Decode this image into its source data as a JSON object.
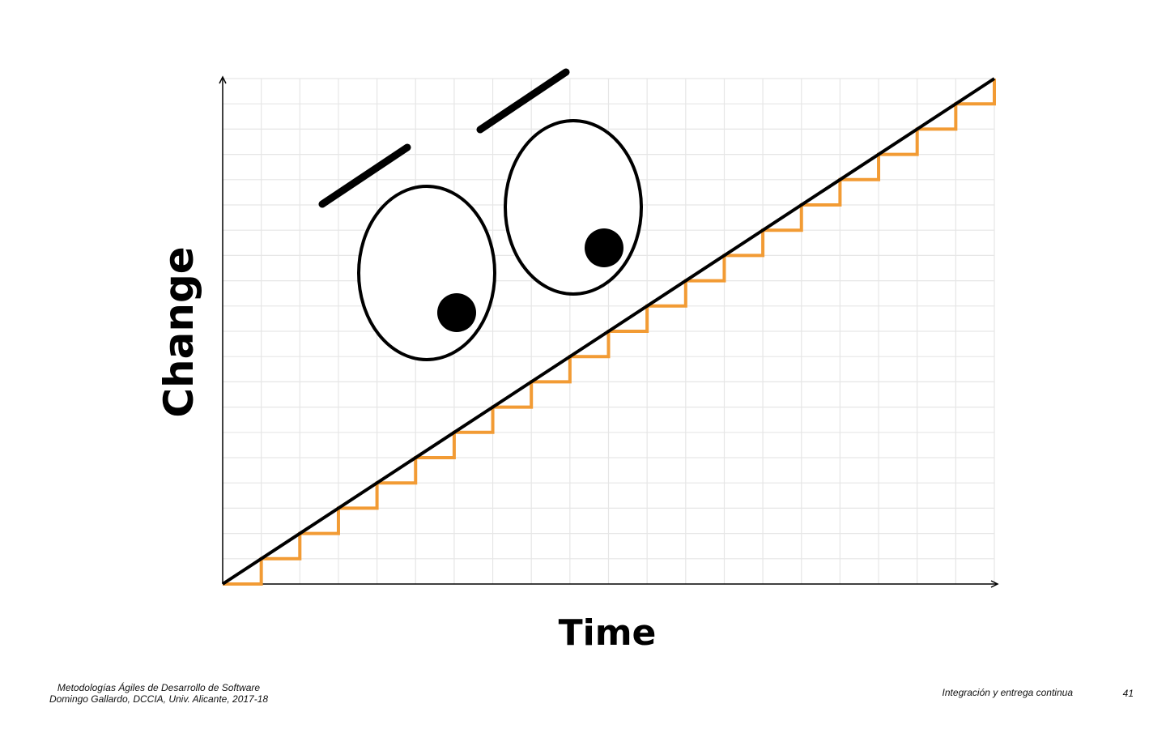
{
  "chart_data": {
    "type": "line",
    "xlabel": "Time",
    "ylabel": "Change",
    "xlim": [
      0,
      20
    ],
    "ylim": [
      0,
      20
    ],
    "grid": true,
    "series": [
      {
        "color": "#000000",
        "x": [
          0,
          20
        ],
        "y": [
          0,
          20
        ]
      },
      {
        "color": "#f29b34",
        "step": "post",
        "x": [
          0,
          1,
          2,
          3,
          4,
          5,
          6,
          7,
          8,
          9,
          10,
          11,
          12,
          13,
          14,
          15,
          16,
          17,
          18,
          19,
          20
        ],
        "y": [
          0,
          1,
          2,
          3,
          4,
          5,
          6,
          7,
          8,
          9,
          10,
          11,
          12,
          13,
          14,
          15,
          16,
          17,
          18,
          19,
          20
        ]
      }
    ]
  },
  "footer": {
    "course": "Metodologías Ágiles de Desarrollo de Software",
    "author": "Domingo Gallardo, DCCIA, Univ. Alicante, 2017-18",
    "topic": "Integración y entrega continua",
    "page": "41"
  }
}
